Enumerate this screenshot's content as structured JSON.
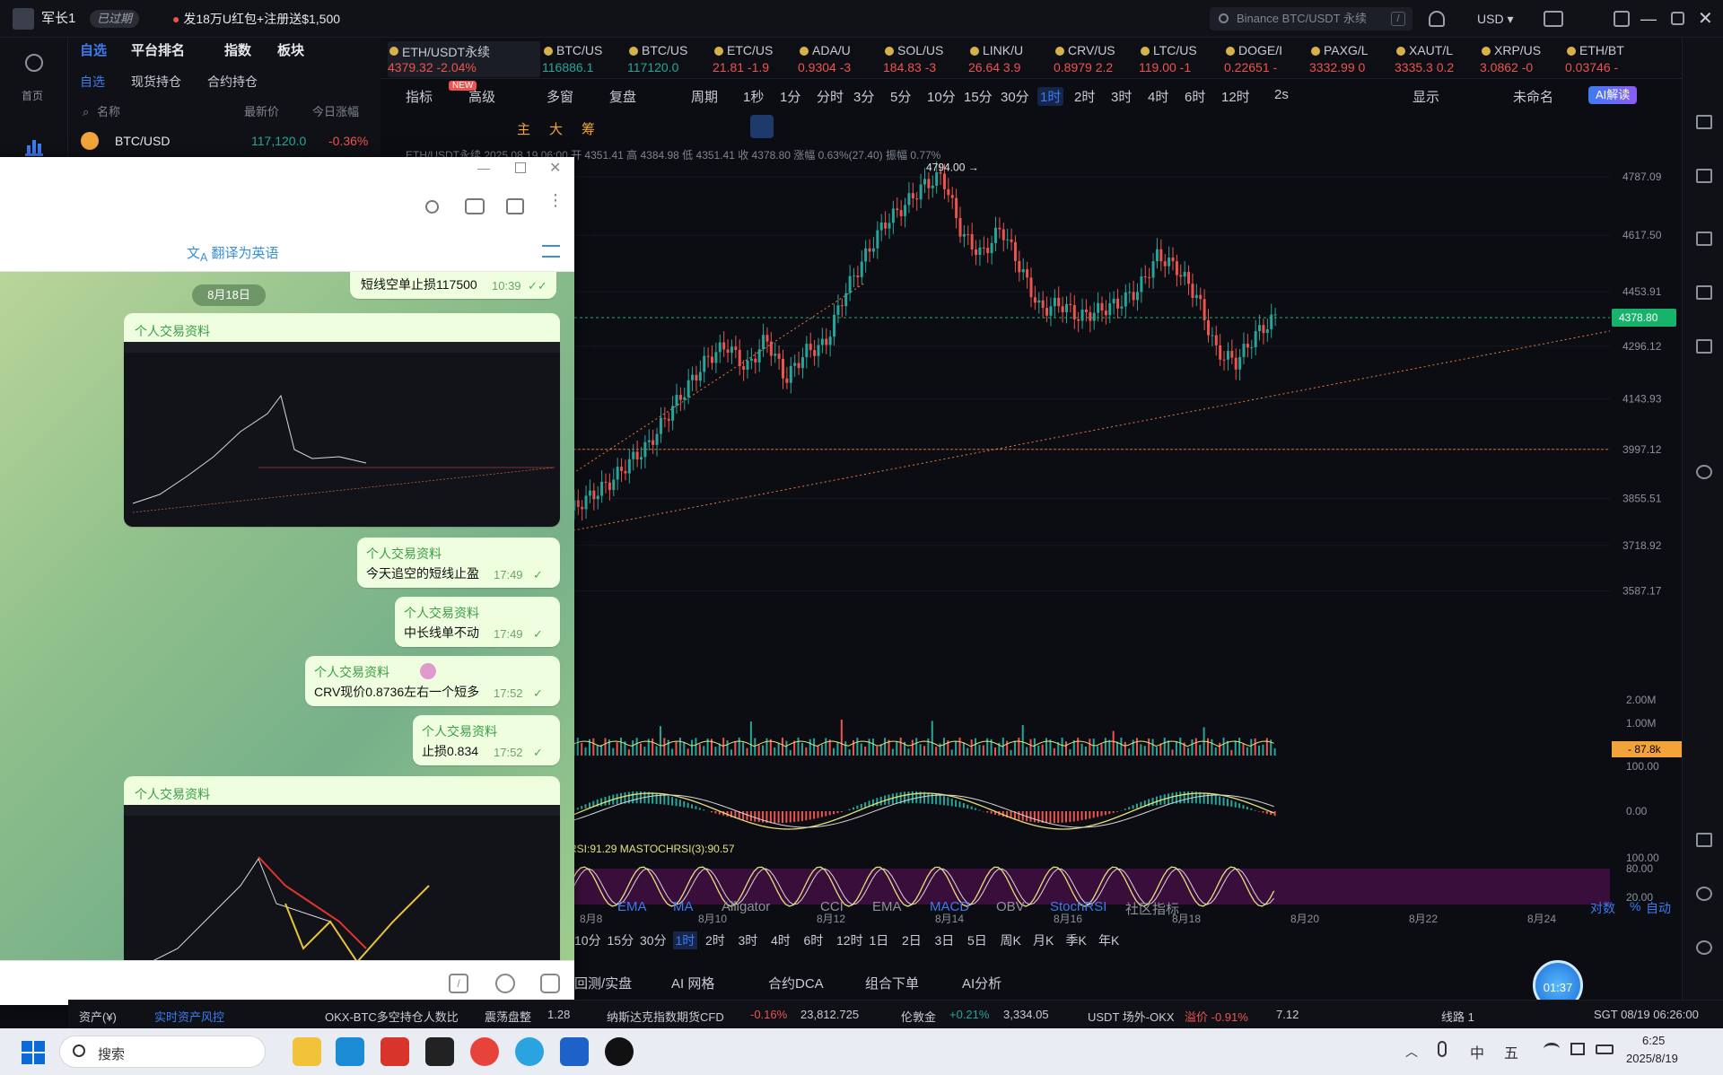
{
  "topbar": {
    "username": "军长1",
    "expired_badge": "已过期",
    "promo": "发18万U红包+注册送$1,500",
    "search_placeholder": "Binance BTC/USDT 永续",
    "search_shortcut": "/",
    "currency": "USD"
  },
  "left_rail": {
    "home_label": "首页"
  },
  "watchlist": {
    "main_tabs": [
      "自选",
      "平台排名",
      "指数",
      "板块"
    ],
    "sub_tabs": [
      "自选",
      "现货持仓",
      "合约持仓"
    ],
    "columns": [
      "名称",
      "最新价",
      "今日涨幅"
    ],
    "rows": [
      {
        "name": "BTC/USD",
        "price": "117,120.0",
        "change": "-0.36%"
      }
    ]
  },
  "tickers": [
    {
      "name": "ETH/USDT永续",
      "price": "4379.32",
      "change": "-2.04%",
      "active": true
    },
    {
      "name": "BTC/US",
      "price": "116886.1",
      "change": ""
    },
    {
      "name": "BTC/US",
      "price": "117120.0",
      "change": ""
    },
    {
      "name": "ETC/US",
      "price": "21.81",
      "change": "-1.9"
    },
    {
      "name": "ADA/U",
      "price": "0.9304",
      "change": "-3"
    },
    {
      "name": "SOL/US",
      "price": "184.83",
      "change": "-3"
    },
    {
      "name": "LINK/U",
      "price": "26.64",
      "change": "3.9"
    },
    {
      "name": "CRV/US",
      "price": "0.8979",
      "change": "2.2"
    },
    {
      "name": "LTC/US",
      "price": "119.00",
      "change": "-1"
    },
    {
      "name": "DOGE/I",
      "price": "0.22651",
      "change": "-"
    },
    {
      "name": "PAXG/L",
      "price": "3332.99",
      "change": "0"
    },
    {
      "name": "XAUT/L",
      "price": "3335.3",
      "change": "0.2"
    },
    {
      "name": "XRP/US",
      "price": "3.0862",
      "change": "-0"
    },
    {
      "name": "ETH/BT",
      "price": "0.03746",
      "change": "-"
    }
  ],
  "toolbar": {
    "indicator": "指标",
    "new_badge": "NEW",
    "advanced": "高级",
    "multi_window": "多窗",
    "replay": "复盘",
    "period": "周期",
    "intervals": [
      "1秒",
      "1分",
      "分时",
      "3分",
      "5分",
      "10分",
      "15分",
      "30分",
      "1时",
      "2时",
      "3时",
      "4时",
      "6时",
      "12时"
    ],
    "active_interval": "1时",
    "refresh": "2s",
    "display": "显示",
    "unnamed": "未命名",
    "ai_button": "AI解读"
  },
  "draw_tools": [
    "主",
    "大",
    "筹"
  ],
  "ohlc_line": "ETH/USDT永续 2025.08.19 06:00 开 4351.41 高 4384.98 低 4351.41 收 4378.80 涨幅 0.63%(27.40) 振幅 0.77%",
  "chart_data": {
    "type": "candlestick",
    "symbol": "ETH/USDT永续",
    "interval": "1时",
    "price_axis": [
      "4787.09",
      "4617.50",
      "4453.91",
      "4296.12",
      "4143.93",
      "3997.12",
      "3855.51",
      "3718.92",
      "3587.17"
    ],
    "current_price": "4378.80",
    "high_label": "4794.00",
    "x_labels": [
      "8月8",
      "8月10",
      "8月12",
      "8月14",
      "8月16",
      "8月18",
      "8月20",
      "8月22",
      "8月24"
    ],
    "close_path": [
      3820,
      3860,
      3900,
      3960,
      4010,
      4100,
      4180,
      4260,
      4300,
      4230,
      4320,
      4200,
      4280,
      4300,
      4450,
      4550,
      4650,
      4700,
      4760,
      4790,
      4620,
      4560,
      4640,
      4520,
      4400,
      4420,
      4380,
      4400,
      4420,
      4460,
      4560,
      4520,
      4440,
      4280,
      4250,
      4330,
      4379
    ],
    "horizontal_line": 3997.12,
    "volume_axis": [
      "2.00M",
      "1.00M"
    ],
    "volume_label": "87.8k",
    "macd_axis": [
      "100.00",
      "0.00"
    ],
    "stochrsi_title": "RSI:91.29  MASTOCHRSI(3):90.57",
    "stochrsi_axis": [
      "100.00",
      "80.00",
      "20.00"
    ]
  },
  "indicator_tabs": [
    "EMA",
    "MA",
    "Alligator",
    "CCI",
    "EMA",
    "MACD",
    "OBV",
    "StochRSI",
    "社区指标"
  ],
  "scale_opts": [
    "对数",
    "%",
    "自动"
  ],
  "bottom_intervals": [
    "10分",
    "15分",
    "30分",
    "1时",
    "2时",
    "3时",
    "4时",
    "6时",
    "12时",
    "1日",
    "2日",
    "3日",
    "5日",
    "周K",
    "月K",
    "季K",
    "年K"
  ],
  "bottom_tabs": [
    "回测/实盘",
    "AI 网格",
    "合约DCA",
    "组合下单",
    "AI分析"
  ],
  "timer": "01:37",
  "status_bar": {
    "assets": "资产(¥)",
    "risk": "实时资产风控",
    "okx_text": "OKX-BTC多空持仓人数比",
    "shock": "震荡盘整",
    "ratio": "1.28",
    "nasdaq_name": "纳斯达克指数期货CFD",
    "nasdaq_chg": "-0.16%",
    "nasdaq_val": "23,812.725",
    "gold_name": "伦敦金",
    "gold_chg": "+0.21%",
    "gold_val": "3,334.05",
    "usdt_name": "USDT 场外-OKX",
    "premium": "溢价 -0.91%",
    "usdt_val": "7.12",
    "line": "线路 1",
    "time": "SGT 08/19 06:26:00"
  },
  "chat": {
    "translate": "翻译为英语",
    "messages": [
      {
        "text": "短线空单止损117500",
        "time": "10:39"
      },
      {
        "date": "8月18日"
      },
      {
        "sender": "个人交易资料",
        "image": true
      },
      {
        "sender": "个人交易资料",
        "text": "今天追空的短线止盈",
        "time": "17:49"
      },
      {
        "sender": "个人交易资料",
        "text": "中长线单不动",
        "time": "17:49"
      },
      {
        "sender": "个人交易资料",
        "text": "CRV现价0.8736左右一个短多",
        "time": "17:52"
      },
      {
        "sender": "个人交易资料",
        "text": "止损0.834",
        "time": "17:52"
      },
      {
        "sender": "个人交易资料",
        "image": true
      }
    ]
  },
  "taskbar": {
    "search": "搜索",
    "ime_cn": "中",
    "ime_mode": "五",
    "time": "6:25",
    "date": "2025/8/19"
  },
  "colors": {
    "up": "#26a69a",
    "down": "#ef5350",
    "accent": "#3d7bf0",
    "price_tag": "#18b36b"
  }
}
